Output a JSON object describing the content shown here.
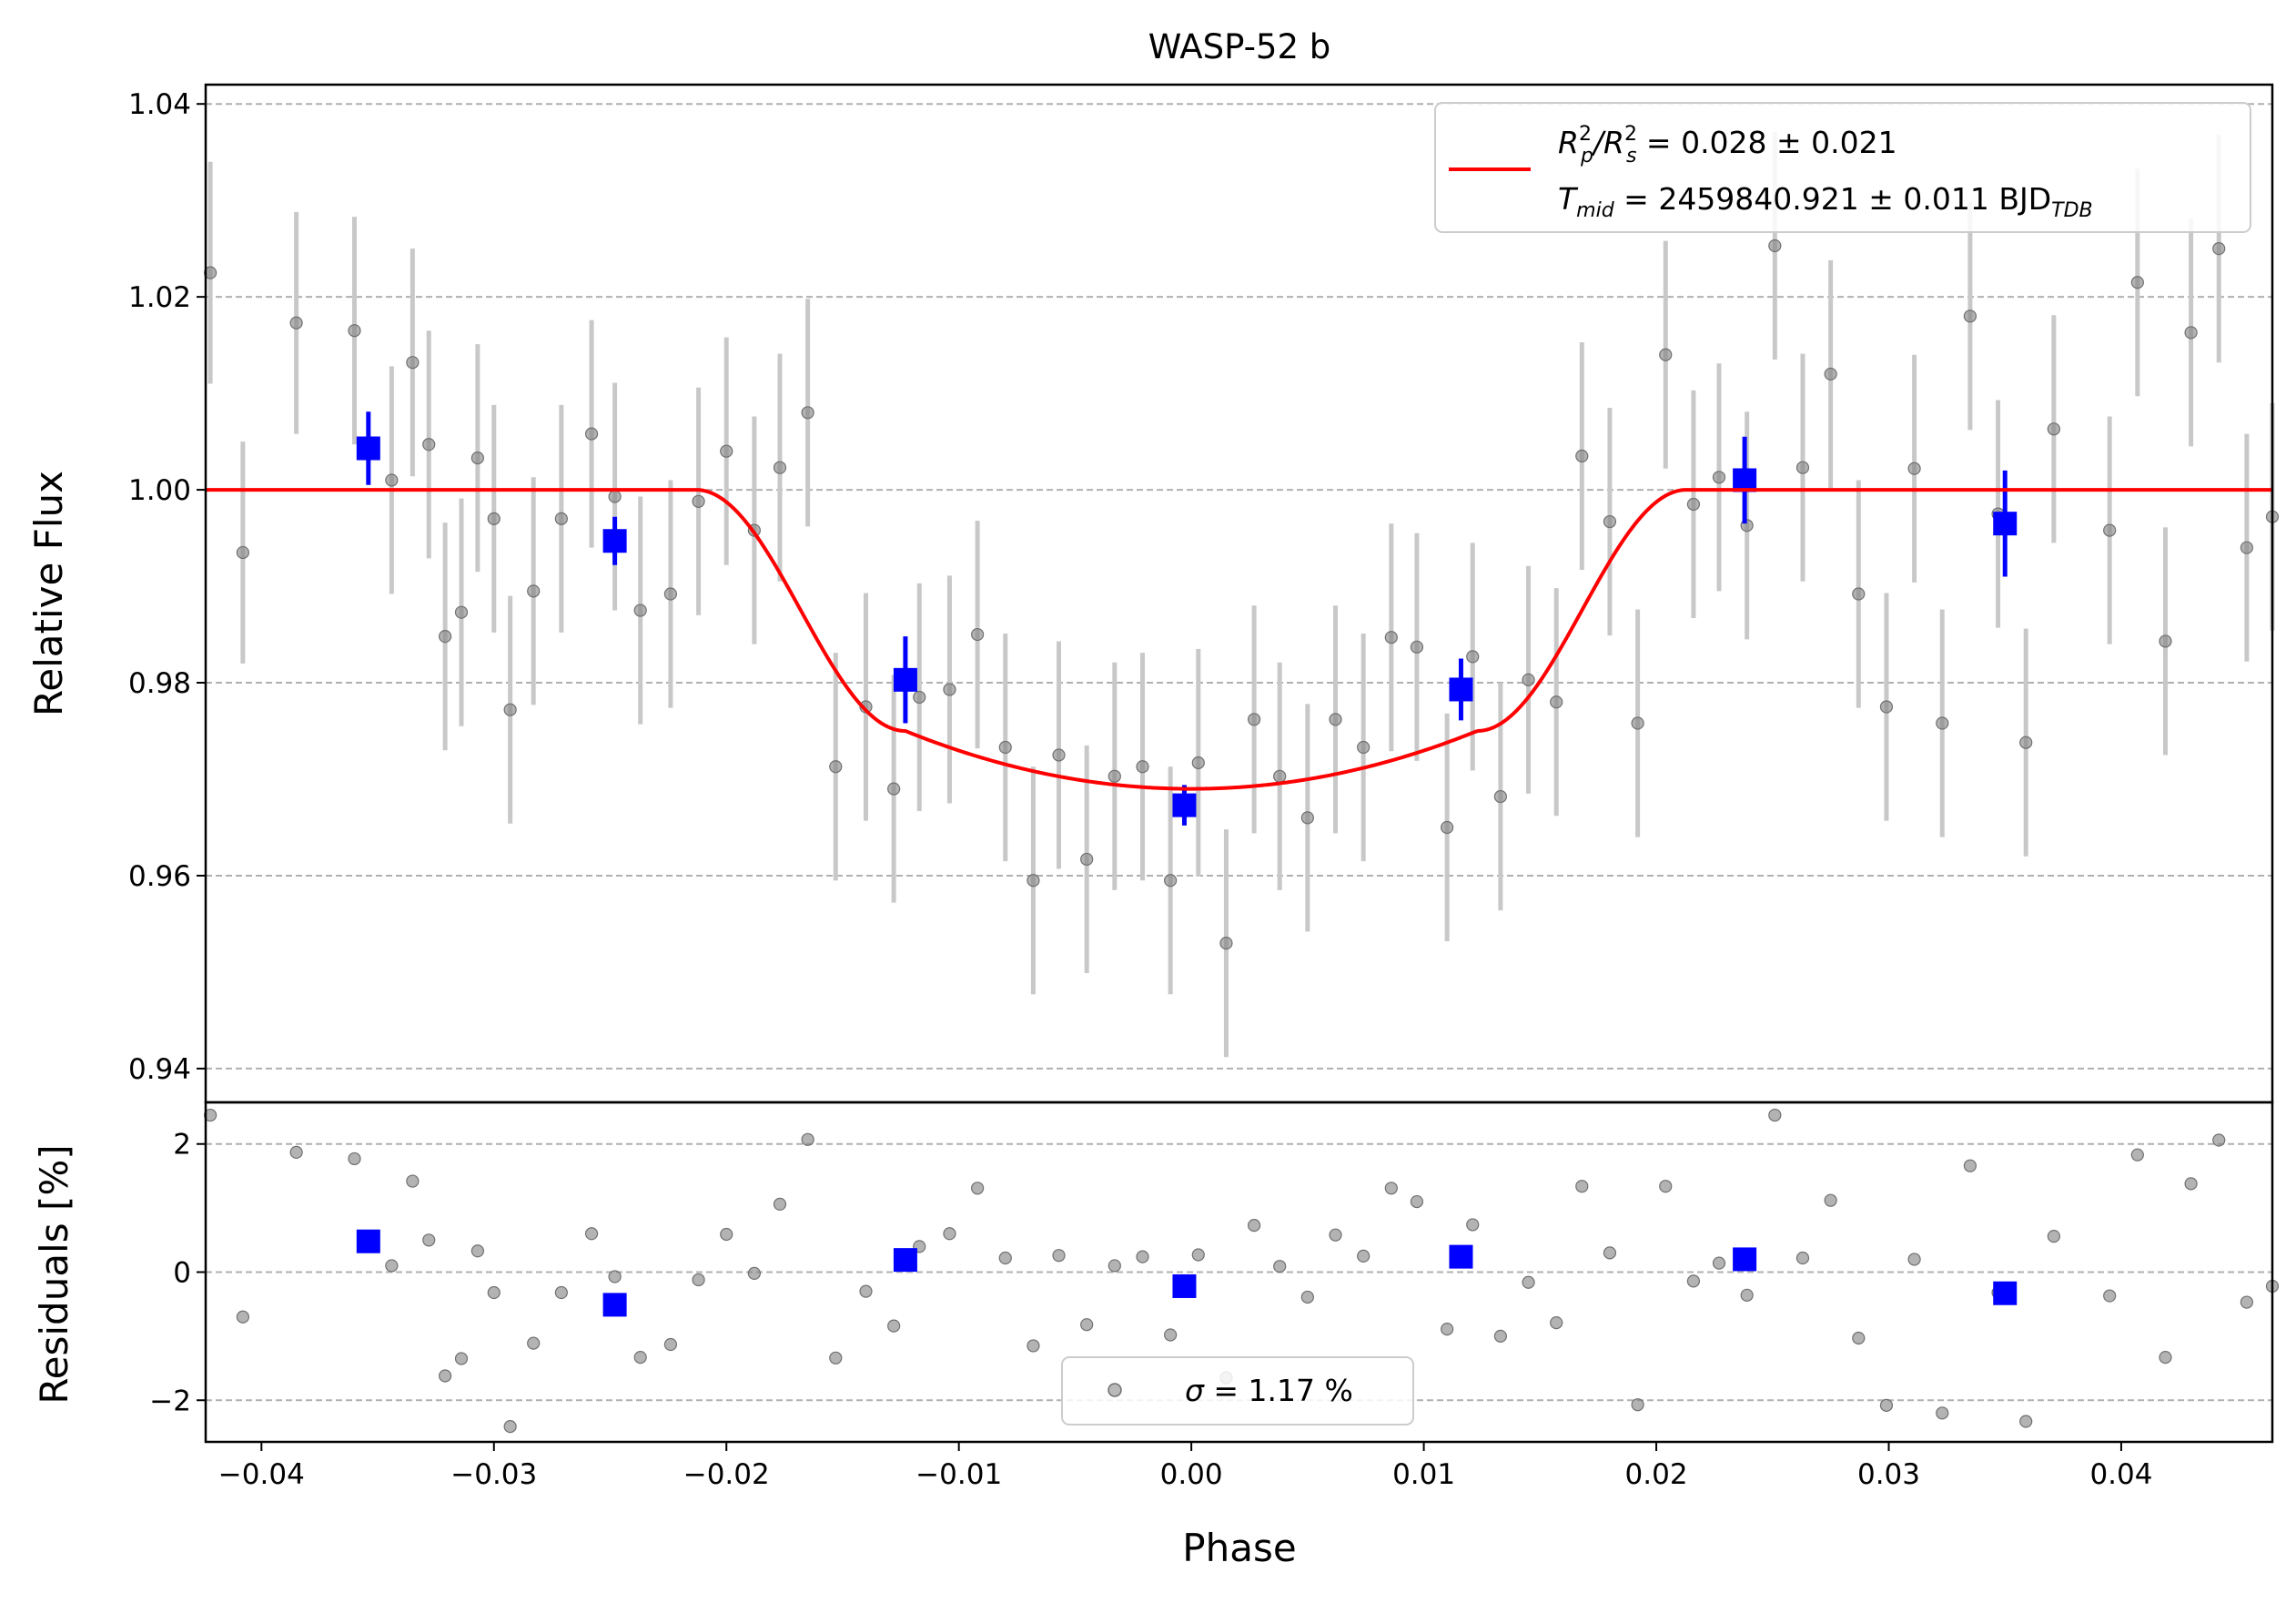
{
  "chart_data": [
    {
      "type": "scatter",
      "panel": "main",
      "title": "WASP-52 b",
      "xlabel": "",
      "ylabel": "Relative Flux",
      "xlim": [
        -0.0424,
        0.0465
      ],
      "ylim": [
        0.9365,
        1.042
      ],
      "x_ticks": [
        -0.04,
        -0.03,
        -0.02,
        -0.01,
        0.0,
        0.01,
        0.02,
        0.03,
        0.04
      ],
      "x_tick_labels": [
        "−0.04",
        "−0.03",
        "−0.02",
        "−0.01",
        "0.00",
        "0.01",
        "0.02",
        "0.03",
        "0.04"
      ],
      "y_ticks": [
        0.94,
        0.96,
        0.98,
        1.0,
        1.02,
        1.04
      ],
      "y_tick_labels": [
        "0.94",
        "0.96",
        "0.98",
        "1.00",
        "1.02",
        "1.04"
      ],
      "grid": "y-dashed",
      "legend_position": "top-right",
      "legend": {
        "line1_prefix": "R",
        "line1_rp_sub": "p",
        "line1_rp_sup": "2",
        "line1_slash": "/R",
        "line1_rs_sub": "s",
        "line1_rs_sup": "2",
        "line1_value": " = 0.028 ± 0.021",
        "line2_prefix": "T",
        "line2_sub": "mid",
        "line2_value": " = 2459840.921 ± 0.011 BJD",
        "line2_unit_sub": "TDB",
        "line_color": "#ff0000"
      },
      "colors": {
        "raw": "#808080",
        "raw_err": "#c8c8c8",
        "binned": "#0000ff",
        "model": "#ff0000"
      },
      "raw_points": [
        {
          "x": -0.0422,
          "y": 1.0225,
          "err": 0.0115
        },
        {
          "x": -0.0408,
          "y": 0.9935,
          "err": 0.0115
        },
        {
          "x": -0.0385,
          "y": 1.0173,
          "err": 0.0115
        },
        {
          "x": -0.036,
          "y": 1.0165,
          "err": 0.0118
        },
        {
          "x": -0.0344,
          "y": 1.001,
          "err": 0.0118
        },
        {
          "x": -0.0335,
          "y": 1.0132,
          "err": 0.0118
        },
        {
          "x": -0.0328,
          "y": 1.0047,
          "err": 0.0118
        },
        {
          "x": -0.0321,
          "y": 0.9848,
          "err": 0.0118
        },
        {
          "x": -0.0314,
          "y": 0.9873,
          "err": 0.0118
        },
        {
          "x": -0.0307,
          "y": 1.0033,
          "err": 0.0118
        },
        {
          "x": -0.03,
          "y": 0.997,
          "err": 0.0118
        },
        {
          "x": -0.0293,
          "y": 0.9772,
          "err": 0.0118
        },
        {
          "x": -0.0283,
          "y": 0.9895,
          "err": 0.0118
        },
        {
          "x": -0.0271,
          "y": 0.997,
          "err": 0.0118
        },
        {
          "x": -0.0258,
          "y": 1.0058,
          "err": 0.0118
        },
        {
          "x": -0.0248,
          "y": 0.9993,
          "err": 0.0118
        },
        {
          "x": -0.0237,
          "y": 0.9875,
          "err": 0.0118
        },
        {
          "x": -0.0224,
          "y": 0.9892,
          "err": 0.0118
        },
        {
          "x": -0.0212,
          "y": 0.9988,
          "err": 0.0118
        },
        {
          "x": -0.02,
          "y": 1.004,
          "err": 0.0118
        },
        {
          "x": -0.0188,
          "y": 0.9958,
          "err": 0.0118
        },
        {
          "x": -0.0177,
          "y": 1.0023,
          "err": 0.0118
        },
        {
          "x": -0.0165,
          "y": 1.008,
          "err": 0.0118
        },
        {
          "x": -0.0153,
          "y": 0.9713,
          "err": 0.0118
        },
        {
          "x": -0.014,
          "y": 0.9775,
          "err": 0.0118
        },
        {
          "x": -0.0128,
          "y": 0.969,
          "err": 0.0118
        },
        {
          "x": -0.0117,
          "y": 0.9785,
          "err": 0.0118
        },
        {
          "x": -0.0104,
          "y": 0.9793,
          "err": 0.0118
        },
        {
          "x": -0.0092,
          "y": 0.985,
          "err": 0.0118
        },
        {
          "x": -0.008,
          "y": 0.9733,
          "err": 0.0118
        },
        {
          "x": -0.0068,
          "y": 0.9595,
          "err": 0.0118
        },
        {
          "x": -0.0057,
          "y": 0.9725,
          "err": 0.0118
        },
        {
          "x": -0.0045,
          "y": 0.9617,
          "err": 0.0118
        },
        {
          "x": -0.0033,
          "y": 0.9703,
          "err": 0.0118
        },
        {
          "x": -0.0021,
          "y": 0.9713,
          "err": 0.0118
        },
        {
          "x": -0.0009,
          "y": 0.9595,
          "err": 0.0118
        },
        {
          "x": 0.0003,
          "y": 0.9717,
          "err": 0.0118
        },
        {
          "x": 0.0015,
          "y": 0.953,
          "err": 0.0118
        },
        {
          "x": 0.0027,
          "y": 0.9762,
          "err": 0.0118
        },
        {
          "x": 0.0038,
          "y": 0.9703,
          "err": 0.0118
        },
        {
          "x": 0.005,
          "y": 0.966,
          "err": 0.0118
        },
        {
          "x": 0.0062,
          "y": 0.9762,
          "err": 0.0118
        },
        {
          "x": 0.0074,
          "y": 0.9733,
          "err": 0.0118
        },
        {
          "x": 0.0086,
          "y": 0.9847,
          "err": 0.0118
        },
        {
          "x": 0.0097,
          "y": 0.9837,
          "err": 0.0118
        },
        {
          "x": 0.011,
          "y": 0.965,
          "err": 0.0118
        },
        {
          "x": 0.0121,
          "y": 0.9827,
          "err": 0.0118
        },
        {
          "x": 0.0133,
          "y": 0.9682,
          "err": 0.0118
        },
        {
          "x": 0.0145,
          "y": 0.9803,
          "err": 0.0118
        },
        {
          "x": 0.0157,
          "y": 0.978,
          "err": 0.0118
        },
        {
          "x": 0.0168,
          "y": 1.0035,
          "err": 0.0118
        },
        {
          "x": 0.018,
          "y": 0.9967,
          "err": 0.0118
        },
        {
          "x": 0.0192,
          "y": 0.9758,
          "err": 0.0118
        },
        {
          "x": 0.0204,
          "y": 1.014,
          "err": 0.0118
        },
        {
          "x": 0.0216,
          "y": 0.9985,
          "err": 0.0118
        },
        {
          "x": 0.0227,
          "y": 1.0013,
          "err": 0.0118
        },
        {
          "x": 0.0239,
          "y": 0.9963,
          "err": 0.0118
        },
        {
          "x": 0.0251,
          "y": 1.0253,
          "err": 0.0118
        },
        {
          "x": 0.0263,
          "y": 1.0023,
          "err": 0.0118
        },
        {
          "x": 0.0275,
          "y": 1.012,
          "err": 0.0118
        },
        {
          "x": 0.0287,
          "y": 0.9892,
          "err": 0.0118
        },
        {
          "x": 0.0299,
          "y": 0.9775,
          "err": 0.0118
        },
        {
          "x": 0.0311,
          "y": 1.0022,
          "err": 0.0118
        },
        {
          "x": 0.0323,
          "y": 0.9758,
          "err": 0.0118
        },
        {
          "x": 0.0335,
          "y": 1.018,
          "err": 0.0118
        },
        {
          "x": 0.0347,
          "y": 0.9975,
          "err": 0.0118
        },
        {
          "x": 0.0359,
          "y": 0.9738,
          "err": 0.0118
        },
        {
          "x": 0.0371,
          "y": 1.0063,
          "err": 0.0118
        },
        {
          "x": 0.0395,
          "y": 0.9958,
          "err": 0.0118
        },
        {
          "x": 0.0407,
          "y": 1.0215,
          "err": 0.0118
        },
        {
          "x": 0.0419,
          "y": 0.9843,
          "err": 0.0118
        },
        {
          "x": 0.043,
          "y": 1.0163,
          "err": 0.0118
        },
        {
          "x": 0.0442,
          "y": 1.025,
          "err": 0.0118
        },
        {
          "x": 0.0454,
          "y": 0.994,
          "err": 0.0118
        },
        {
          "x": 0.0465,
          "y": 0.9972,
          "err": 0.0118
        }
      ],
      "binned_points": [
        {
          "x": -0.0354,
          "y": 1.0043,
          "err": 0.0038
        },
        {
          "x": -0.0248,
          "y": 0.9947,
          "err": 0.0025
        },
        {
          "x": -0.0123,
          "y": 0.9803,
          "err": 0.0045
        },
        {
          "x": -0.0003,
          "y": 0.9673,
          "err": 0.0021
        },
        {
          "x": 0.0116,
          "y": 0.9793,
          "err": 0.0032
        },
        {
          "x": 0.0238,
          "y": 1.001,
          "err": 0.0045
        },
        {
          "x": 0.035,
          "y": 0.9965,
          "err": 0.0055
        }
      ],
      "model_params": {
        "depth": 0.031,
        "t1": -0.0213,
        "t2": -0.0123,
        "t3": 0.0123,
        "t4": 0.0213,
        "curvature": 0.006
      }
    },
    {
      "type": "scatter",
      "panel": "residuals",
      "xlabel": "Phase",
      "ylabel": "Residuals [%]",
      "xlim": [
        -0.0424,
        0.0465
      ],
      "ylim": [
        -2.65,
        2.65
      ],
      "y_ticks": [
        -2,
        0,
        2
      ],
      "y_tick_labels": [
        "−2",
        "0",
        "2"
      ],
      "grid": "y-dashed",
      "legend_position": "bottom-center",
      "legend": {
        "sigma_symbol": "σ",
        "sigma_text": " = 1.17 %"
      },
      "raw_points": [
        {
          "x": -0.0422,
          "y": 2.45
        },
        {
          "x": -0.0408,
          "y": -0.7
        },
        {
          "x": -0.0385,
          "y": 1.87
        },
        {
          "x": -0.036,
          "y": 1.77
        },
        {
          "x": -0.0344,
          "y": 0.1
        },
        {
          "x": -0.0335,
          "y": 1.42
        },
        {
          "x": -0.0328,
          "y": 0.5
        },
        {
          "x": -0.0321,
          "y": -1.62
        },
        {
          "x": -0.0314,
          "y": -1.35
        },
        {
          "x": -0.0307,
          "y": 0.33
        },
        {
          "x": -0.03,
          "y": -0.32
        },
        {
          "x": -0.0293,
          "y": -2.41
        },
        {
          "x": -0.0283,
          "y": -1.11
        },
        {
          "x": -0.0271,
          "y": -0.32
        },
        {
          "x": -0.0258,
          "y": 0.6
        },
        {
          "x": -0.0248,
          "y": -0.07
        },
        {
          "x": -0.0237,
          "y": -1.33
        },
        {
          "x": -0.0224,
          "y": -1.13
        },
        {
          "x": -0.0212,
          "y": -0.12
        },
        {
          "x": -0.02,
          "y": 0.59
        },
        {
          "x": -0.0188,
          "y": -0.02
        },
        {
          "x": -0.0177,
          "y": 1.06
        },
        {
          "x": -0.0165,
          "y": 2.07
        },
        {
          "x": -0.0153,
          "y": -1.34
        },
        {
          "x": -0.014,
          "y": -0.3
        },
        {
          "x": -0.0128,
          "y": -0.84
        },
        {
          "x": -0.0117,
          "y": 0.4
        },
        {
          "x": -0.0104,
          "y": 0.6
        },
        {
          "x": -0.0092,
          "y": 1.31
        },
        {
          "x": -0.008,
          "y": 0.22
        },
        {
          "x": -0.0068,
          "y": -1.15
        },
        {
          "x": -0.0057,
          "y": 0.26
        },
        {
          "x": -0.0045,
          "y": -0.82
        },
        {
          "x": -0.0033,
          "y": 0.1
        },
        {
          "x": -0.0021,
          "y": 0.24
        },
        {
          "x": -0.0009,
          "y": -0.98
        },
        {
          "x": 0.0003,
          "y": 0.27
        },
        {
          "x": 0.0015,
          "y": -1.65
        },
        {
          "x": 0.0027,
          "y": 0.73
        },
        {
          "x": 0.0038,
          "y": 0.09
        },
        {
          "x": 0.005,
          "y": -0.39
        },
        {
          "x": 0.0062,
          "y": 0.58
        },
        {
          "x": 0.0074,
          "y": 0.25
        },
        {
          "x": 0.0086,
          "y": 1.31
        },
        {
          "x": 0.0097,
          "y": 1.1
        },
        {
          "x": 0.011,
          "y": -0.89
        },
        {
          "x": 0.0121,
          "y": 0.74
        },
        {
          "x": 0.0133,
          "y": -1.0
        },
        {
          "x": 0.0145,
          "y": -0.16
        },
        {
          "x": 0.0157,
          "y": -0.79
        },
        {
          "x": 0.0168,
          "y": 1.34
        },
        {
          "x": 0.018,
          "y": 0.3
        },
        {
          "x": 0.0192,
          "y": -2.07
        },
        {
          "x": 0.0204,
          "y": 1.34
        },
        {
          "x": 0.0216,
          "y": -0.14
        },
        {
          "x": 0.0227,
          "y": 0.14
        },
        {
          "x": 0.0239,
          "y": -0.36
        },
        {
          "x": 0.0251,
          "y": 2.45
        },
        {
          "x": 0.0263,
          "y": 0.22
        },
        {
          "x": 0.0275,
          "y": 1.12
        },
        {
          "x": 0.0287,
          "y": -1.03
        },
        {
          "x": 0.0299,
          "y": -2.08
        },
        {
          "x": 0.0311,
          "y": 0.2
        },
        {
          "x": 0.0323,
          "y": -2.2
        },
        {
          "x": 0.0335,
          "y": 1.66
        },
        {
          "x": 0.0347,
          "y": -0.32
        },
        {
          "x": 0.0359,
          "y": -2.33
        },
        {
          "x": 0.0371,
          "y": 0.56
        },
        {
          "x": 0.0395,
          "y": -0.37
        },
        {
          "x": 0.0407,
          "y": 1.83
        },
        {
          "x": 0.0419,
          "y": -1.33
        },
        {
          "x": 0.043,
          "y": 1.38
        },
        {
          "x": 0.0442,
          "y": 2.06
        },
        {
          "x": 0.0454,
          "y": -0.47
        },
        {
          "x": 0.0465,
          "y": -0.22
        }
      ],
      "binned_points": [
        {
          "x": -0.0354,
          "y": 0.48
        },
        {
          "x": -0.0248,
          "y": -0.51
        },
        {
          "x": -0.0123,
          "y": 0.19
        },
        {
          "x": -0.0003,
          "y": -0.22
        },
        {
          "x": 0.0116,
          "y": 0.24
        },
        {
          "x": 0.0238,
          "y": 0.2
        },
        {
          "x": 0.035,
          "y": -0.33
        }
      ]
    }
  ]
}
